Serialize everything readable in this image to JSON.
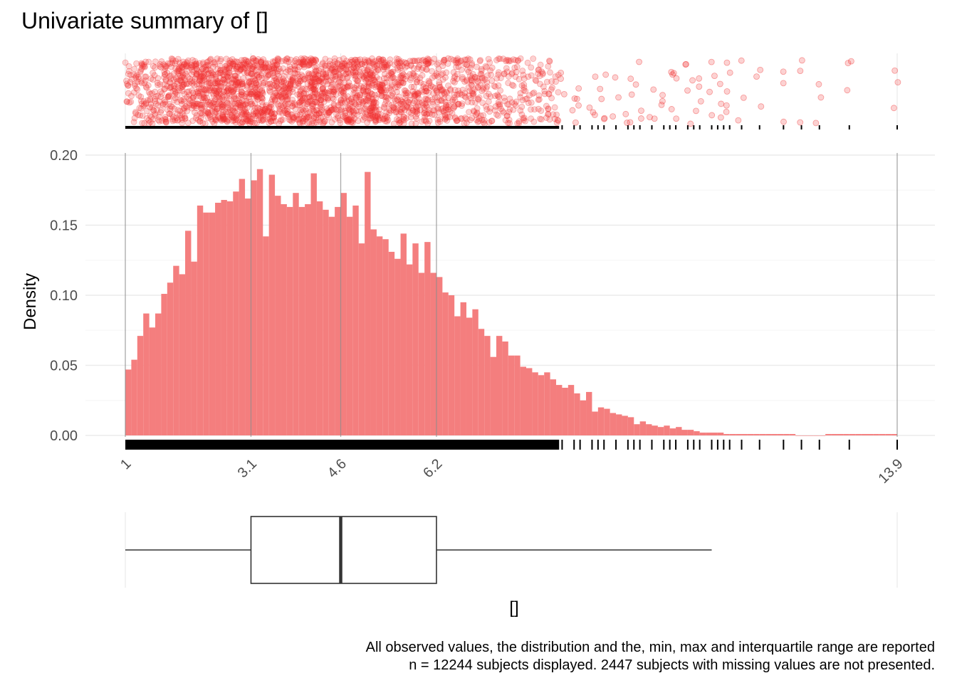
{
  "title": "Univariate summary of  []",
  "caption": {
    "line1": "All observed values, the distribution and the, min, max and interquartile range are reported",
    "line2": "n = 12244 subjects displayed. 2447 subjects with missing values are not presented."
  },
  "chart_data": {
    "type": "bar",
    "subtype": "histogram",
    "xlabel": "[]",
    "ylabel": "Density",
    "xlim": [
      1,
      13.9
    ],
    "ylim": [
      0,
      0.2
    ],
    "x_ticks": [
      "1",
      "3.1",
      "4.6",
      "6.2",
      "13.9"
    ],
    "x_tick_values": [
      1,
      3.1,
      4.6,
      6.2,
      13.9
    ],
    "y_ticks": [
      "0.00",
      "0.05",
      "0.10",
      "0.15",
      "0.20"
    ],
    "y_tick_values": [
      0,
      0.05,
      0.1,
      0.15,
      0.2
    ],
    "grid": true,
    "colors": {
      "bars": "#f47e7e",
      "points": "#f03030",
      "marks": "#000000",
      "box": "#333333"
    },
    "bin_start": 1.0,
    "bin_width": 0.1,
    "values": [
      0.047,
      0.054,
      0.071,
      0.087,
      0.077,
      0.087,
      0.101,
      0.109,
      0.121,
      0.115,
      0.146,
      0.124,
      0.164,
      0.159,
      0.159,
      0.166,
      0.168,
      0.167,
      0.174,
      0.183,
      0.169,
      0.182,
      0.19,
      0.142,
      0.186,
      0.171,
      0.165,
      0.163,
      0.173,
      0.163,
      0.165,
      0.187,
      0.167,
      0.161,
      0.156,
      0.163,
      0.173,
      0.156,
      0.164,
      0.137,
      0.188,
      0.147,
      0.142,
      0.14,
      0.131,
      0.126,
      0.144,
      0.122,
      0.137,
      0.116,
      0.138,
      0.116,
      0.113,
      0.102,
      0.1,
      0.085,
      0.095,
      0.084,
      0.09,
      0.076,
      0.071,
      0.056,
      0.071,
      0.067,
      0.057,
      0.057,
      0.049,
      0.048,
      0.045,
      0.043,
      0.045,
      0.04,
      0.036,
      0.034,
      0.036,
      0.03,
      0.025,
      0.031,
      0.017,
      0.02,
      0.019,
      0.016,
      0.015,
      0.014,
      0.013,
      0.008,
      0.01,
      0.008,
      0.007,
      0.006,
      0.007,
      0.005,
      0.006,
      0.004,
      0.004,
      0.003,
      0.002,
      0.002,
      0.002,
      0.002,
      0.001,
      0.001,
      0.001,
      0.001,
      0.001,
      0.001,
      0.001,
      0.001,
      0.001,
      0.001,
      0.001,
      0.001,
      0.0,
      0.0,
      0.0,
      0.0,
      0.0,
      0.001,
      0.001,
      0.001,
      0.001,
      0.001,
      0.001,
      0.001,
      0.001,
      0.001,
      0.001,
      0.001,
      0.001
    ],
    "sparse_observations": [
      8.3,
      8.5,
      8.6,
      8.8,
      8.9,
      9.0,
      9.2,
      9.4,
      9.5,
      9.6,
      9.8,
      10.0,
      10.1,
      10.2,
      10.4,
      10.5,
      10.6,
      10.8,
      10.9,
      11.0,
      11.1,
      11.3,
      11.6,
      12.0,
      12.3,
      12.6,
      13.1,
      13.9
    ],
    "dense_until": 8.25,
    "boxplot": {
      "whisker_low": 1.0,
      "q1": 3.1,
      "median": 4.6,
      "q3": 6.2,
      "whisker_high": 10.8
    },
    "reference_lines": [
      1,
      3.1,
      4.6,
      6.2,
      13.9
    ]
  }
}
